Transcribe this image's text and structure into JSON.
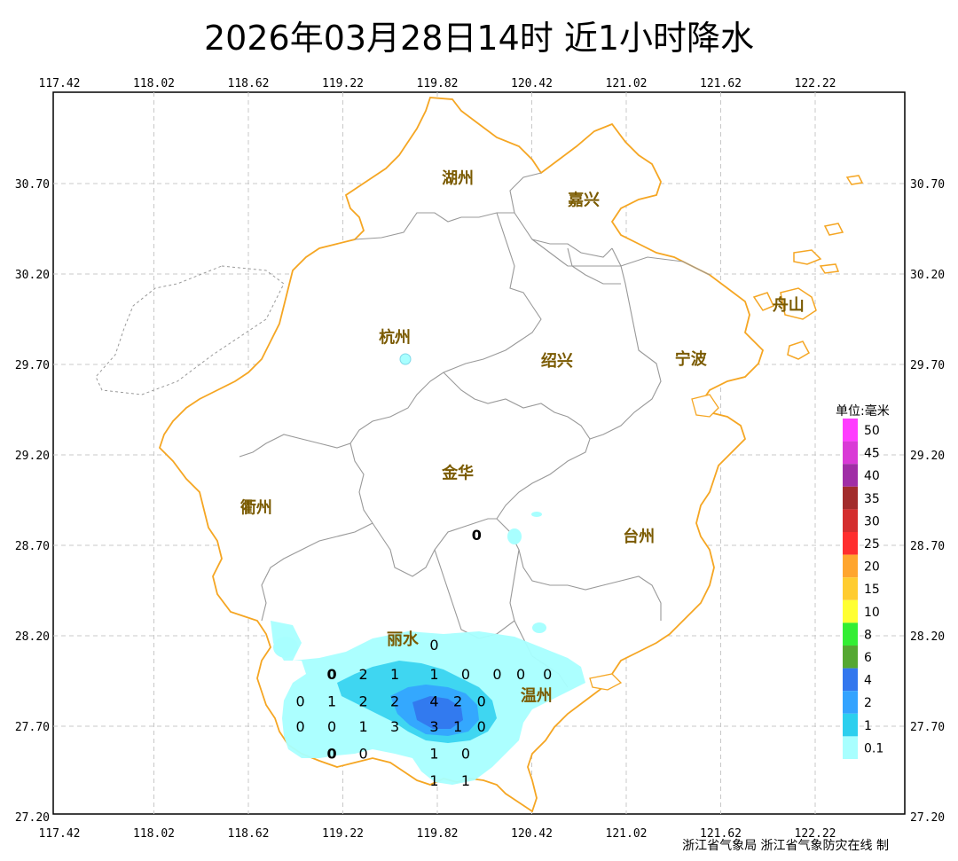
{
  "title": "2026年03月28日14时 近1小时降水",
  "lon_ticks": [
    "117.42",
    "118.02",
    "118.62",
    "119.22",
    "119.82",
    "120.42",
    "121.02",
    "121.62",
    "122.22"
  ],
  "lat_ticks": [
    "30.70",
    "30.20",
    "29.70",
    "29.20",
    "28.70",
    "28.20",
    "27.70",
    "27.20"
  ],
  "cities": [
    {
      "name": "湖州",
      "lon": 119.95,
      "lat": 30.7
    },
    {
      "name": "嘉兴",
      "lon": 120.75,
      "lat": 30.58
    },
    {
      "name": "杭州",
      "lon": 119.55,
      "lat": 29.82
    },
    {
      "name": "绍兴",
      "lon": 120.58,
      "lat": 29.69
    },
    {
      "name": "宁波",
      "lon": 121.43,
      "lat": 29.7
    },
    {
      "name": "舟山",
      "lon": 122.05,
      "lat": 30.0
    },
    {
      "name": "金华",
      "lon": 119.95,
      "lat": 29.07
    },
    {
      "name": "衢州",
      "lon": 118.67,
      "lat": 28.88
    },
    {
      "name": "台州",
      "lon": 121.1,
      "lat": 28.72
    },
    {
      "name": "丽水",
      "lon": 119.6,
      "lat": 28.15
    },
    {
      "name": "温州",
      "lon": 120.45,
      "lat": 27.84
    }
  ],
  "stations": [
    {
      "v": "0",
      "lon": 120.07,
      "lat": 28.76,
      "bold": true
    },
    {
      "v": "0",
      "lon": 119.8,
      "lat": 28.15
    },
    {
      "v": "0",
      "lon": 119.15,
      "lat": 27.99,
      "bold": true
    },
    {
      "v": "2",
      "lon": 119.35,
      "lat": 27.99
    },
    {
      "v": "1",
      "lon": 119.55,
      "lat": 27.99
    },
    {
      "v": "1",
      "lon": 119.8,
      "lat": 27.99
    },
    {
      "v": "0",
      "lon": 120.0,
      "lat": 27.99
    },
    {
      "v": "0",
      "lon": 120.2,
      "lat": 27.99
    },
    {
      "v": "0",
      "lon": 120.35,
      "lat": 27.99
    },
    {
      "v": "0",
      "lon": 120.52,
      "lat": 27.99
    },
    {
      "v": "0",
      "lon": 118.95,
      "lat": 27.84
    },
    {
      "v": "1",
      "lon": 119.15,
      "lat": 27.84
    },
    {
      "v": "2",
      "lon": 119.35,
      "lat": 27.84
    },
    {
      "v": "2",
      "lon": 119.55,
      "lat": 27.84
    },
    {
      "v": "4",
      "lon": 119.8,
      "lat": 27.84
    },
    {
      "v": "2",
      "lon": 119.95,
      "lat": 27.84
    },
    {
      "v": "0",
      "lon": 120.1,
      "lat": 27.84
    },
    {
      "v": "0",
      "lon": 118.95,
      "lat": 27.7
    },
    {
      "v": "0",
      "lon": 119.15,
      "lat": 27.7
    },
    {
      "v": "1",
      "lon": 119.35,
      "lat": 27.7
    },
    {
      "v": "3",
      "lon": 119.55,
      "lat": 27.7
    },
    {
      "v": "3",
      "lon": 119.8,
      "lat": 27.7
    },
    {
      "v": "1",
      "lon": 119.95,
      "lat": 27.7
    },
    {
      "v": "0",
      "lon": 120.1,
      "lat": 27.7
    },
    {
      "v": "0",
      "lon": 119.15,
      "lat": 27.55,
      "bold": true
    },
    {
      "v": "0",
      "lon": 119.35,
      "lat": 27.55
    },
    {
      "v": "1",
      "lon": 119.8,
      "lat": 27.55
    },
    {
      "v": "0",
      "lon": 120.0,
      "lat": 27.55
    },
    {
      "v": "1",
      "lon": 119.8,
      "lat": 27.4
    },
    {
      "v": "1",
      "lon": 120.0,
      "lat": 27.4
    }
  ],
  "legend": {
    "title": "单位:毫米",
    "items": [
      {
        "label": "50",
        "color": "#ff3cff"
      },
      {
        "label": "45",
        "color": "#d93ad6"
      },
      {
        "label": "40",
        "color": "#a02ea6"
      },
      {
        "label": "35",
        "color": "#a22c2c"
      },
      {
        "label": "30",
        "color": "#d42e2e"
      },
      {
        "label": "25",
        "color": "#ff2e2e"
      },
      {
        "label": "20",
        "color": "#ffa52e"
      },
      {
        "label": "15",
        "color": "#ffcc30"
      },
      {
        "label": "10",
        "color": "#ffff33"
      },
      {
        "label": "8",
        "color": "#33ee33"
      },
      {
        "label": "6",
        "color": "#55a832"
      },
      {
        "label": "4",
        "color": "#3377ee"
      },
      {
        "label": "2",
        "color": "#33a3ff"
      },
      {
        "label": "1",
        "color": "#2ccfee"
      },
      {
        "label": "0.1",
        "color": "#a8ffff"
      }
    ]
  },
  "footer": "浙江省气象局 浙江省气象防灾在线 制",
  "colors": {
    "coast": "#f5a623",
    "border": "#999999",
    "grid": "#c8c8c8",
    "water": "#bfe0ff"
  }
}
